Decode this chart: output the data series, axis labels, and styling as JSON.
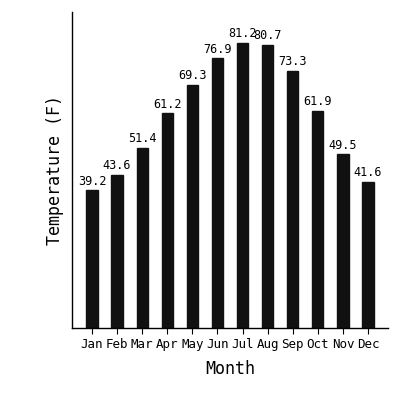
{
  "months": [
    "Jan",
    "Feb",
    "Mar",
    "Apr",
    "May",
    "Jun",
    "Jul",
    "Aug",
    "Sep",
    "Oct",
    "Nov",
    "Dec"
  ],
  "temperatures": [
    39.2,
    43.6,
    51.4,
    61.2,
    69.3,
    76.9,
    81.2,
    80.7,
    73.3,
    61.9,
    49.5,
    41.6
  ],
  "bar_color": "#111111",
  "xlabel": "Month",
  "ylabel": "Temperature (F)",
  "ylim": [
    0,
    90
  ],
  "label_fontsize": 12,
  "tick_fontsize": 9,
  "bar_label_fontsize": 8.5,
  "background_color": "#ffffff",
  "bar_width": 0.45
}
